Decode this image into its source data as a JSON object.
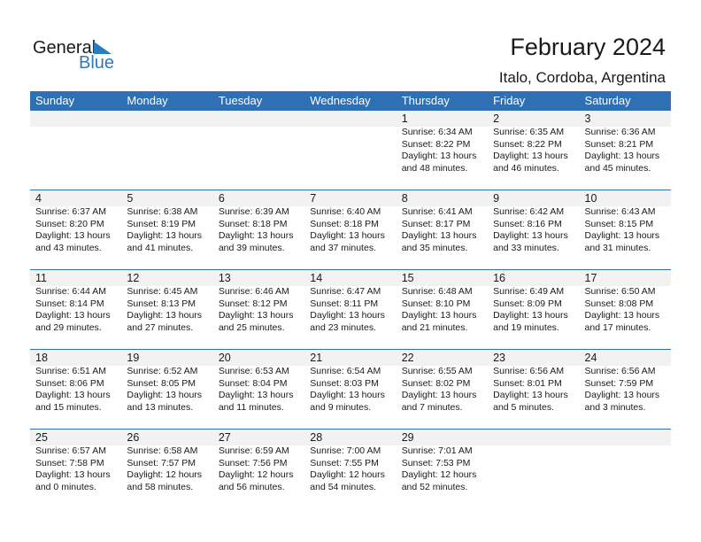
{
  "logo": {
    "word1": "General",
    "word2": "Blue"
  },
  "title": "February 2024",
  "location": "Italo, Cordoba, Argentina",
  "colors": {
    "header": "#2e70b3",
    "band": "#f2f2f2",
    "logo_blue": "#2b7bbf"
  },
  "weekdays": [
    "Sunday",
    "Monday",
    "Tuesday",
    "Wednesday",
    "Thursday",
    "Friday",
    "Saturday"
  ],
  "weeks": [
    [
      null,
      null,
      null,
      null,
      {
        "day": "1",
        "sunrise": "Sunrise: 6:34 AM",
        "sunset": "Sunset: 8:22 PM",
        "daylight1": "Daylight: 13 hours",
        "daylight2": "and 48 minutes."
      },
      {
        "day": "2",
        "sunrise": "Sunrise: 6:35 AM",
        "sunset": "Sunset: 8:22 PM",
        "daylight1": "Daylight: 13 hours",
        "daylight2": "and 46 minutes."
      },
      {
        "day": "3",
        "sunrise": "Sunrise: 6:36 AM",
        "sunset": "Sunset: 8:21 PM",
        "daylight1": "Daylight: 13 hours",
        "daylight2": "and 45 minutes."
      }
    ],
    [
      {
        "day": "4",
        "sunrise": "Sunrise: 6:37 AM",
        "sunset": "Sunset: 8:20 PM",
        "daylight1": "Daylight: 13 hours",
        "daylight2": "and 43 minutes."
      },
      {
        "day": "5",
        "sunrise": "Sunrise: 6:38 AM",
        "sunset": "Sunset: 8:19 PM",
        "daylight1": "Daylight: 13 hours",
        "daylight2": "and 41 minutes."
      },
      {
        "day": "6",
        "sunrise": "Sunrise: 6:39 AM",
        "sunset": "Sunset: 8:18 PM",
        "daylight1": "Daylight: 13 hours",
        "daylight2": "and 39 minutes."
      },
      {
        "day": "7",
        "sunrise": "Sunrise: 6:40 AM",
        "sunset": "Sunset: 8:18 PM",
        "daylight1": "Daylight: 13 hours",
        "daylight2": "and 37 minutes."
      },
      {
        "day": "8",
        "sunrise": "Sunrise: 6:41 AM",
        "sunset": "Sunset: 8:17 PM",
        "daylight1": "Daylight: 13 hours",
        "daylight2": "and 35 minutes."
      },
      {
        "day": "9",
        "sunrise": "Sunrise: 6:42 AM",
        "sunset": "Sunset: 8:16 PM",
        "daylight1": "Daylight: 13 hours",
        "daylight2": "and 33 minutes."
      },
      {
        "day": "10",
        "sunrise": "Sunrise: 6:43 AM",
        "sunset": "Sunset: 8:15 PM",
        "daylight1": "Daylight: 13 hours",
        "daylight2": "and 31 minutes."
      }
    ],
    [
      {
        "day": "11",
        "sunrise": "Sunrise: 6:44 AM",
        "sunset": "Sunset: 8:14 PM",
        "daylight1": "Daylight: 13 hours",
        "daylight2": "and 29 minutes."
      },
      {
        "day": "12",
        "sunrise": "Sunrise: 6:45 AM",
        "sunset": "Sunset: 8:13 PM",
        "daylight1": "Daylight: 13 hours",
        "daylight2": "and 27 minutes."
      },
      {
        "day": "13",
        "sunrise": "Sunrise: 6:46 AM",
        "sunset": "Sunset: 8:12 PM",
        "daylight1": "Daylight: 13 hours",
        "daylight2": "and 25 minutes."
      },
      {
        "day": "14",
        "sunrise": "Sunrise: 6:47 AM",
        "sunset": "Sunset: 8:11 PM",
        "daylight1": "Daylight: 13 hours",
        "daylight2": "and 23 minutes."
      },
      {
        "day": "15",
        "sunrise": "Sunrise: 6:48 AM",
        "sunset": "Sunset: 8:10 PM",
        "daylight1": "Daylight: 13 hours",
        "daylight2": "and 21 minutes."
      },
      {
        "day": "16",
        "sunrise": "Sunrise: 6:49 AM",
        "sunset": "Sunset: 8:09 PM",
        "daylight1": "Daylight: 13 hours",
        "daylight2": "and 19 minutes."
      },
      {
        "day": "17",
        "sunrise": "Sunrise: 6:50 AM",
        "sunset": "Sunset: 8:08 PM",
        "daylight1": "Daylight: 13 hours",
        "daylight2": "and 17 minutes."
      }
    ],
    [
      {
        "day": "18",
        "sunrise": "Sunrise: 6:51 AM",
        "sunset": "Sunset: 8:06 PM",
        "daylight1": "Daylight: 13 hours",
        "daylight2": "and 15 minutes."
      },
      {
        "day": "19",
        "sunrise": "Sunrise: 6:52 AM",
        "sunset": "Sunset: 8:05 PM",
        "daylight1": "Daylight: 13 hours",
        "daylight2": "and 13 minutes."
      },
      {
        "day": "20",
        "sunrise": "Sunrise: 6:53 AM",
        "sunset": "Sunset: 8:04 PM",
        "daylight1": "Daylight: 13 hours",
        "daylight2": "and 11 minutes."
      },
      {
        "day": "21",
        "sunrise": "Sunrise: 6:54 AM",
        "sunset": "Sunset: 8:03 PM",
        "daylight1": "Daylight: 13 hours",
        "daylight2": "and 9 minutes."
      },
      {
        "day": "22",
        "sunrise": "Sunrise: 6:55 AM",
        "sunset": "Sunset: 8:02 PM",
        "daylight1": "Daylight: 13 hours",
        "daylight2": "and 7 minutes."
      },
      {
        "day": "23",
        "sunrise": "Sunrise: 6:56 AM",
        "sunset": "Sunset: 8:01 PM",
        "daylight1": "Daylight: 13 hours",
        "daylight2": "and 5 minutes."
      },
      {
        "day": "24",
        "sunrise": "Sunrise: 6:56 AM",
        "sunset": "Sunset: 7:59 PM",
        "daylight1": "Daylight: 13 hours",
        "daylight2": "and 3 minutes."
      }
    ],
    [
      {
        "day": "25",
        "sunrise": "Sunrise: 6:57 AM",
        "sunset": "Sunset: 7:58 PM",
        "daylight1": "Daylight: 13 hours",
        "daylight2": "and 0 minutes."
      },
      {
        "day": "26",
        "sunrise": "Sunrise: 6:58 AM",
        "sunset": "Sunset: 7:57 PM",
        "daylight1": "Daylight: 12 hours",
        "daylight2": "and 58 minutes."
      },
      {
        "day": "27",
        "sunrise": "Sunrise: 6:59 AM",
        "sunset": "Sunset: 7:56 PM",
        "daylight1": "Daylight: 12 hours",
        "daylight2": "and 56 minutes."
      },
      {
        "day": "28",
        "sunrise": "Sunrise: 7:00 AM",
        "sunset": "Sunset: 7:55 PM",
        "daylight1": "Daylight: 12 hours",
        "daylight2": "and 54 minutes."
      },
      {
        "day": "29",
        "sunrise": "Sunrise: 7:01 AM",
        "sunset": "Sunset: 7:53 PM",
        "daylight1": "Daylight: 12 hours",
        "daylight2": "and 52 minutes."
      },
      null,
      null
    ]
  ]
}
